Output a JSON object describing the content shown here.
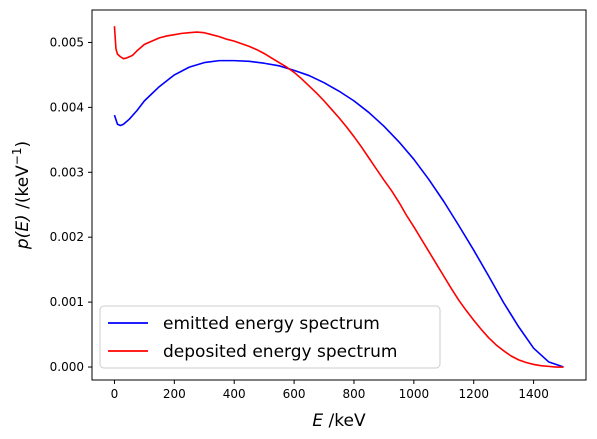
{
  "chart_data": {
    "type": "line",
    "title": "",
    "xlabel": {
      "var": "E",
      "unit": " /keV"
    },
    "ylabel": {
      "var": "p(E)",
      "unit": " /(keV",
      "exp": "−1",
      "close": ")"
    },
    "xlim": [
      -75,
      1575
    ],
    "ylim": [
      -0.0002,
      0.0055
    ],
    "x_ticks": [
      0,
      200,
      400,
      600,
      800,
      1000,
      1200,
      1400
    ],
    "x_tick_labels": [
      "0",
      "200",
      "400",
      "600",
      "800",
      "1000",
      "1200",
      "1400"
    ],
    "y_ticks": [
      0.0,
      0.001,
      0.002,
      0.003,
      0.004,
      0.005
    ],
    "y_tick_labels": [
      "0.000",
      "0.001",
      "0.002",
      "0.003",
      "0.004",
      "0.005"
    ],
    "grid": false,
    "legend_position": "lower-left",
    "series": [
      {
        "name": "emitted energy spectrum",
        "color": "#0000ff",
        "x": [
          0,
          10,
          20,
          30,
          50,
          75,
          100,
          150,
          200,
          250,
          300,
          350,
          400,
          450,
          500,
          550,
          600,
          650,
          700,
          750,
          800,
          850,
          900,
          950,
          1000,
          1050,
          1100,
          1150,
          1200,
          1250,
          1300,
          1350,
          1400,
          1450,
          1500
        ],
        "y": [
          0.00388,
          0.00374,
          0.00372,
          0.00374,
          0.00382,
          0.00395,
          0.0041,
          0.00432,
          0.0045,
          0.00462,
          0.00469,
          0.00472,
          0.00472,
          0.00471,
          0.00468,
          0.00464,
          0.00457,
          0.00449,
          0.00438,
          0.00425,
          0.0041,
          0.00392,
          0.00371,
          0.00347,
          0.0032,
          0.00289,
          0.00255,
          0.00218,
          0.0018,
          0.0014,
          0.00099,
          0.00062,
          0.00029,
          8e-05,
          0.0
        ]
      },
      {
        "name": "deposited energy spectrum",
        "color": "#ff0000",
        "x": [
          0,
          5,
          10,
          20,
          30,
          40,
          50,
          60,
          75,
          100,
          125,
          150,
          175,
          200,
          225,
          250,
          275,
          300,
          325,
          350,
          375,
          400,
          425,
          450,
          475,
          500,
          525,
          550,
          575,
          600,
          625,
          650,
          675,
          700,
          725,
          750,
          775,
          800,
          825,
          850,
          875,
          900,
          925,
          950,
          975,
          1000,
          1025,
          1050,
          1075,
          1100,
          1125,
          1150,
          1175,
          1200,
          1225,
          1250,
          1275,
          1300,
          1325,
          1350,
          1375,
          1400,
          1425,
          1450,
          1475,
          1500
        ],
        "y": [
          0.00525,
          0.0049,
          0.00482,
          0.00478,
          0.00475,
          0.00476,
          0.00478,
          0.0048,
          0.00487,
          0.00497,
          0.00502,
          0.00507,
          0.0051,
          0.00512,
          0.00514,
          0.00515,
          0.00516,
          0.00515,
          0.00512,
          0.00509,
          0.00505,
          0.00502,
          0.00498,
          0.00494,
          0.00489,
          0.00483,
          0.00476,
          0.00469,
          0.00462,
          0.00454,
          0.00444,
          0.00433,
          0.00422,
          0.0041,
          0.00397,
          0.00384,
          0.0037,
          0.00355,
          0.00339,
          0.00322,
          0.00305,
          0.00288,
          0.00272,
          0.00254,
          0.00234,
          0.00216,
          0.00197,
          0.00178,
          0.00159,
          0.0014,
          0.00121,
          0.00103,
          0.00087,
          0.00072,
          0.00058,
          0.00045,
          0.00034,
          0.00025,
          0.00017,
          0.00011,
          7e-05,
          4e-05,
          2e-05,
          1e-05,
          0.0,
          0.0
        ]
      }
    ]
  }
}
